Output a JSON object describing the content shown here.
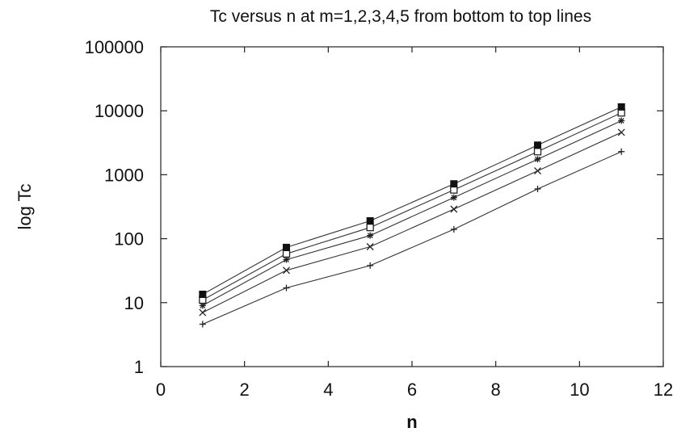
{
  "chart_data": {
    "type": "line",
    "title": "Tc versus n at m=1,2,3,4,5 from bottom to top lines",
    "xlabel": "n",
    "ylabel": "log Tc",
    "xlim": [
      0,
      12
    ],
    "ylim": [
      1,
      100000
    ],
    "yscale": "log",
    "grid": false,
    "x_ticks": [
      "0",
      "2",
      "4",
      "6",
      "8",
      "10",
      "12"
    ],
    "y_ticks": [
      "1",
      "10",
      "100",
      "1000",
      "10000",
      "100000"
    ],
    "x": [
      1,
      3,
      5,
      7,
      9,
      11
    ],
    "series": [
      {
        "marker": "plus",
        "values": [
          4.6,
          17,
          38,
          140,
          600,
          2300
        ]
      },
      {
        "marker": "x",
        "values": [
          7,
          32,
          75,
          290,
          1150,
          4600
        ]
      },
      {
        "marker": "asterisk",
        "values": [
          9,
          47,
          112,
          440,
          1750,
          7000
        ]
      },
      {
        "marker": "open-square",
        "values": [
          11,
          58,
          150,
          580,
          2300,
          9300
        ]
      },
      {
        "marker": "filled-square",
        "values": [
          13.5,
          73,
          190,
          720,
          2900,
          11500
        ]
      }
    ]
  }
}
